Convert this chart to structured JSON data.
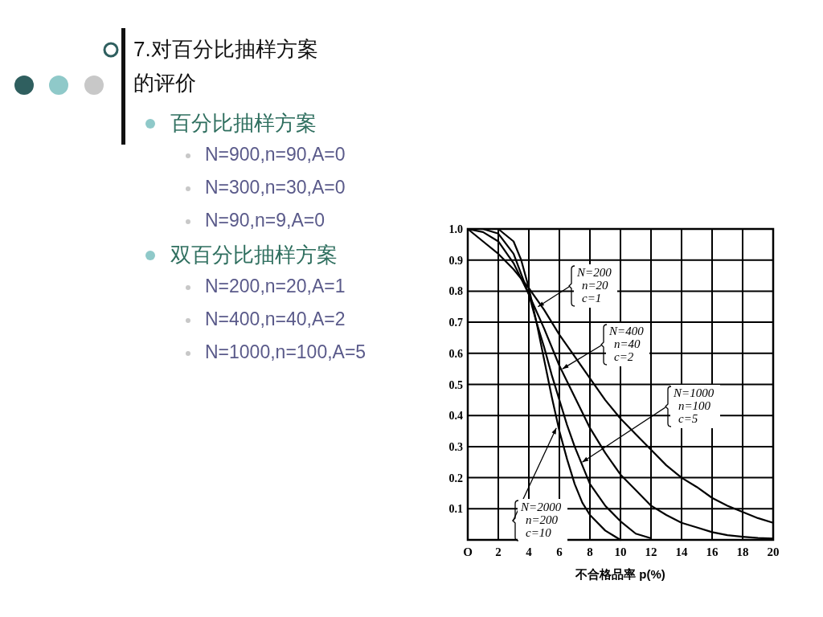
{
  "chart_data": {
    "type": "line",
    "title": "7.对百分比抽样方案的评价",
    "annotations": [
      "百分比抽样方案",
      "N=900,n=90,A=0",
      "N=300,n=30,A=0",
      "N=90,n=9,A=0",
      "双百分比抽样方案",
      "N=200,n=20,A=1",
      "N=400,n=40,A=2",
      "N=1000,n=100,A=5",
      {
        "text": "N=200\nn=20\nc=1",
        "x": 4.6,
        "y": 0.75
      },
      {
        "text": "N=400\nn=40\nc=2",
        "x": 6.2,
        "y": 0.55
      },
      {
        "text": "N=1000\nn=100\nc=5",
        "x": 7.5,
        "y": 0.25
      },
      {
        "text": "N=2000\nn=200\nc=10",
        "x": 5.8,
        "y": 0.36
      }
    ],
    "xlabel": "不合格品率 p(%)",
    "xlim": [
      0,
      20
    ],
    "xticks": [
      {
        "value": 0,
        "label": "O"
      },
      2,
      4,
      6,
      8,
      10,
      12,
      14,
      16,
      18,
      20
    ],
    "ylim": [
      0,
      1
    ],
    "yticks": [
      {
        "value": 0,
        "label": null
      },
      0.1,
      0.2,
      0.3,
      0.4,
      0.5,
      0.6,
      0.7,
      0.8,
      0.9,
      {
        "value": 1,
        "label": "1.0"
      }
    ],
    "grid": true,
    "line_style": "solid",
    "marker": "none",
    "series": [
      {
        "color": "#000000",
        "x": [
          0,
          1,
          2,
          3,
          4,
          5,
          6,
          7,
          8,
          9,
          10,
          11,
          12,
          13,
          14,
          15,
          16,
          17,
          18,
          19,
          20
        ],
        "values": [
          1.0,
          0.96,
          0.92,
          0.87,
          0.81,
          0.74,
          0.66,
          0.59,
          0.52,
          0.45,
          0.39,
          0.34,
          0.29,
          0.24,
          0.2,
          0.17,
          0.135,
          0.11,
          0.09,
          0.07,
          0.055
        ]
      },
      {
        "color": "#000000",
        "x": [
          0,
          1,
          2,
          3,
          4,
          5,
          6,
          7,
          8,
          9,
          10,
          11,
          12,
          13,
          14,
          15,
          16,
          17,
          18,
          19,
          20
        ],
        "values": [
          1.0,
          0.99,
          0.96,
          0.89,
          0.79,
          0.68,
          0.56,
          0.46,
          0.36,
          0.28,
          0.21,
          0.16,
          0.11,
          0.08,
          0.055,
          0.04,
          0.025,
          0.015,
          0.01,
          0.006,
          0.004
        ]
      },
      {
        "color": "#000000",
        "x": [
          0,
          1,
          2,
          3,
          4,
          4.5,
          5,
          5.5,
          6,
          6.5,
          7,
          7.5,
          8,
          9,
          10,
          11,
          12
        ],
        "values": [
          1.0,
          1.0,
          0.985,
          0.92,
          0.79,
          0.7,
          0.62,
          0.53,
          0.45,
          0.37,
          0.3,
          0.24,
          0.18,
          0.11,
          0.06,
          0.02,
          0.005
        ]
      },
      {
        "color": "#000000",
        "x": [
          0,
          1,
          2,
          3,
          3.5,
          4,
          4.5,
          5,
          5.5,
          6,
          6.5,
          7,
          7.5,
          8,
          9,
          10
        ],
        "values": [
          1.0,
          1.0,
          1.0,
          0.96,
          0.9,
          0.81,
          0.7,
          0.58,
          0.46,
          0.35,
          0.26,
          0.18,
          0.12,
          0.08,
          0.03,
          0.0
        ]
      }
    ]
  }
}
